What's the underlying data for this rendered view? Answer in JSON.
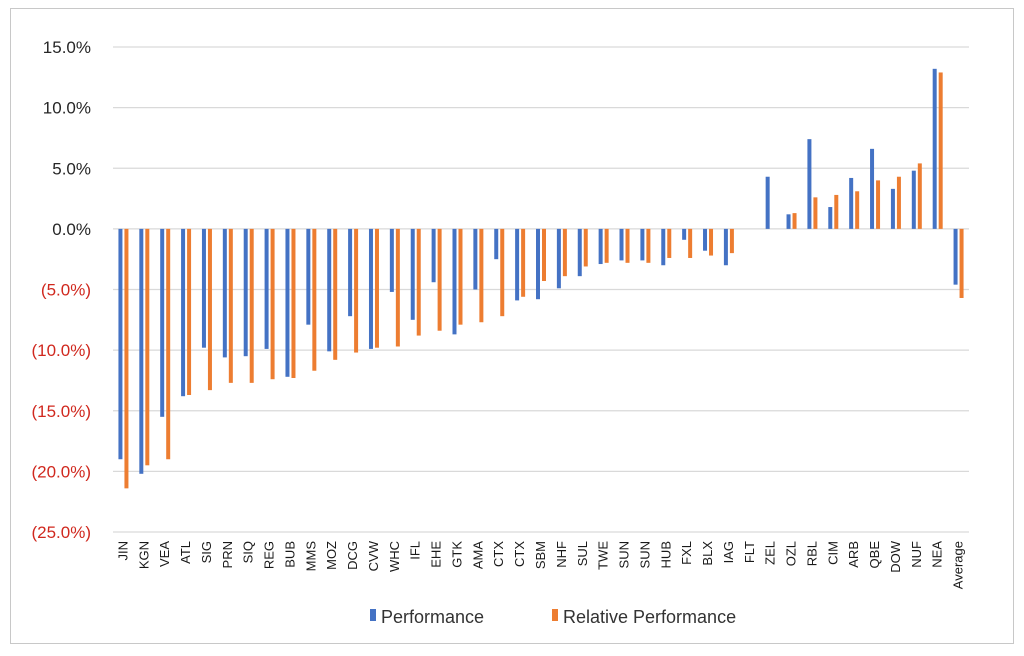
{
  "chart_data": {
    "type": "bar",
    "title": "",
    "xlabel": "",
    "ylabel": "",
    "ylim": [
      -0.25,
      0.15
    ],
    "yticks": [
      {
        "value": 0.15,
        "label": "15.0%"
      },
      {
        "value": 0.1,
        "label": "10.0%"
      },
      {
        "value": 0.05,
        "label": "5.0%"
      },
      {
        "value": 0.0,
        "label": "0.0%"
      },
      {
        "value": -0.05,
        "label": "(5.0%)"
      },
      {
        "value": -0.1,
        "label": "(10.0%)"
      },
      {
        "value": -0.15,
        "label": "(15.0%)"
      },
      {
        "value": -0.2,
        "label": "(20.0%)"
      },
      {
        "value": -0.25,
        "label": "(25.0%)"
      }
    ],
    "negative_label_color": "#d0281e",
    "positive_label_color": "#262626",
    "grid": true,
    "legend_position": "bottom",
    "categories": [
      "JIN",
      "KGN",
      "VEA",
      "ATL",
      "SIG",
      "PRN",
      "SIQ",
      "REG",
      "BUB",
      "MMS",
      "MOZ",
      "DCG",
      "CVW",
      "WHC",
      "IFL",
      "EHE",
      "GTK",
      "AMA",
      "CTX",
      "CTX",
      "SBM",
      "NHF",
      "SUL",
      "TWE",
      "SUN",
      "SUN",
      "HUB",
      "FXL",
      "BLX",
      "IAG",
      "FLT",
      "ZEL",
      "OZL",
      "RBL",
      "CIM",
      "ARB",
      "QBE",
      "DOW",
      "NUF",
      "NEA",
      "Average"
    ],
    "series": [
      {
        "name": "Performance",
        "color": "#4472c4",
        "values": [
          -0.19,
          -0.202,
          -0.155,
          -0.138,
          -0.098,
          -0.106,
          -0.105,
          -0.099,
          -0.122,
          -0.079,
          -0.101,
          -0.072,
          -0.099,
          -0.052,
          -0.075,
          -0.044,
          -0.087,
          -0.05,
          -0.025,
          -0.059,
          -0.058,
          -0.049,
          -0.039,
          -0.029,
          -0.026,
          -0.026,
          -0.03,
          -0.009,
          -0.018,
          -0.03,
          0.0,
          0.043,
          0.012,
          0.074,
          0.018,
          0.042,
          0.066,
          0.033,
          0.048,
          0.132,
          -0.046
        ]
      },
      {
        "name": "Relative Performance",
        "color": "#ed7d31",
        "values": [
          -0.214,
          -0.195,
          -0.19,
          -0.137,
          -0.133,
          -0.127,
          -0.127,
          -0.124,
          -0.123,
          -0.117,
          -0.108,
          -0.102,
          -0.098,
          -0.097,
          -0.088,
          -0.084,
          -0.079,
          -0.077,
          -0.072,
          -0.056,
          -0.043,
          -0.039,
          -0.031,
          -0.028,
          -0.028,
          -0.028,
          -0.024,
          -0.024,
          -0.022,
          -0.02,
          0.0,
          0.0,
          0.013,
          0.026,
          0.028,
          0.031,
          0.04,
          0.043,
          0.054,
          0.129,
          -0.057
        ]
      }
    ]
  }
}
